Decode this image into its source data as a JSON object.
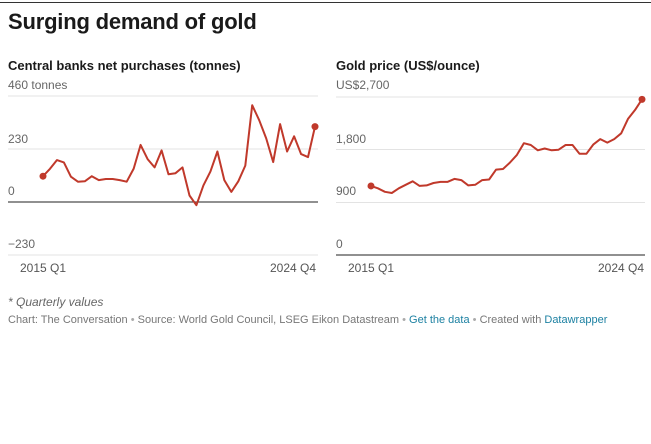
{
  "header": {
    "title": "Surging demand of gold"
  },
  "chart_data": [
    {
      "type": "line",
      "title": "Central banks net purchases (tonnes)",
      "ylim": [
        -230,
        460
      ],
      "yticks": [
        {
          "value": 460,
          "label": "460 tonnes"
        },
        {
          "value": 230,
          "label": "230"
        },
        {
          "value": 0,
          "label": "0"
        },
        {
          "value": -230,
          "label": "−230"
        }
      ],
      "xlabels": {
        "start": "2015 Q1",
        "end": "2024 Q4"
      },
      "color": "#c0392b",
      "x": [
        "2015 Q1",
        "2015 Q2",
        "2015 Q3",
        "2015 Q4",
        "2016 Q1",
        "2016 Q2",
        "2016 Q3",
        "2016 Q4",
        "2017 Q1",
        "2017 Q2",
        "2017 Q3",
        "2017 Q4",
        "2018 Q1",
        "2018 Q2",
        "2018 Q3",
        "2018 Q4",
        "2019 Q1",
        "2019 Q2",
        "2019 Q3",
        "2019 Q4",
        "2020 Q1",
        "2020 Q2",
        "2020 Q3",
        "2020 Q4",
        "2021 Q1",
        "2021 Q2",
        "2021 Q3",
        "2021 Q4",
        "2022 Q1",
        "2022 Q2",
        "2022 Q3",
        "2022 Q4",
        "2023 Q1",
        "2023 Q2",
        "2023 Q3",
        "2023 Q4",
        "2024 Q1",
        "2024 Q2",
        "2024 Q3",
        "2024 Q4"
      ],
      "values": [
        112,
        144,
        182,
        172,
        110,
        88,
        90,
        112,
        95,
        100,
        100,
        95,
        88,
        145,
        248,
        186,
        150,
        224,
        120,
        125,
        150,
        28,
        -14,
        72,
        132,
        219,
        95,
        44,
        90,
        158,
        420,
        355,
        276,
        173,
        338,
        219,
        285,
        208,
        195,
        327
      ]
    },
    {
      "type": "line",
      "title": "Gold price (US$/ounce)",
      "ylim": [
        0,
        2700
      ],
      "yticks": [
        {
          "value": 2700,
          "label": "US$2,700"
        },
        {
          "value": 1800,
          "label": "1,800"
        },
        {
          "value": 900,
          "label": "900"
        },
        {
          "value": 0,
          "label": "0"
        }
      ],
      "xlabels": {
        "start": "2015 Q1",
        "end": "2024 Q4"
      },
      "color": "#c0392b",
      "x": [
        "2015 Q1",
        "2015 Q2",
        "2015 Q3",
        "2015 Q4",
        "2016 Q1",
        "2016 Q2",
        "2016 Q3",
        "2016 Q4",
        "2017 Q1",
        "2017 Q2",
        "2017 Q3",
        "2017 Q4",
        "2018 Q1",
        "2018 Q2",
        "2018 Q3",
        "2018 Q4",
        "2019 Q1",
        "2019 Q2",
        "2019 Q3",
        "2019 Q4",
        "2020 Q1",
        "2020 Q2",
        "2020 Q3",
        "2020 Q4",
        "2021 Q1",
        "2021 Q2",
        "2021 Q3",
        "2021 Q4",
        "2022 Q1",
        "2022 Q2",
        "2022 Q3",
        "2022 Q4",
        "2023 Q1",
        "2023 Q2",
        "2023 Q3",
        "2023 Q4",
        "2024 Q1",
        "2024 Q2",
        "2024 Q3",
        "2024 Q4"
      ],
      "values": [
        1180,
        1140,
        1080,
        1060,
        1140,
        1200,
        1260,
        1180,
        1190,
        1230,
        1250,
        1250,
        1300,
        1280,
        1190,
        1200,
        1280,
        1290,
        1460,
        1470,
        1580,
        1710,
        1910,
        1880,
        1790,
        1820,
        1790,
        1800,
        1880,
        1880,
        1730,
        1730,
        1890,
        1980,
        1920,
        1980,
        2080,
        2330,
        2480,
        2660
      ]
    }
  ],
  "note": "* Quarterly values",
  "footer": {
    "chart_by": "Chart: The Conversation",
    "sep1": " • ",
    "source": "Source: World Gold Council, LSEG Eikon Datastream",
    "sep2": " • ",
    "get_data": "Get the data",
    "sep3": " • ",
    "created_with": "Created with ",
    "datawrapper": "Datawrapper"
  }
}
